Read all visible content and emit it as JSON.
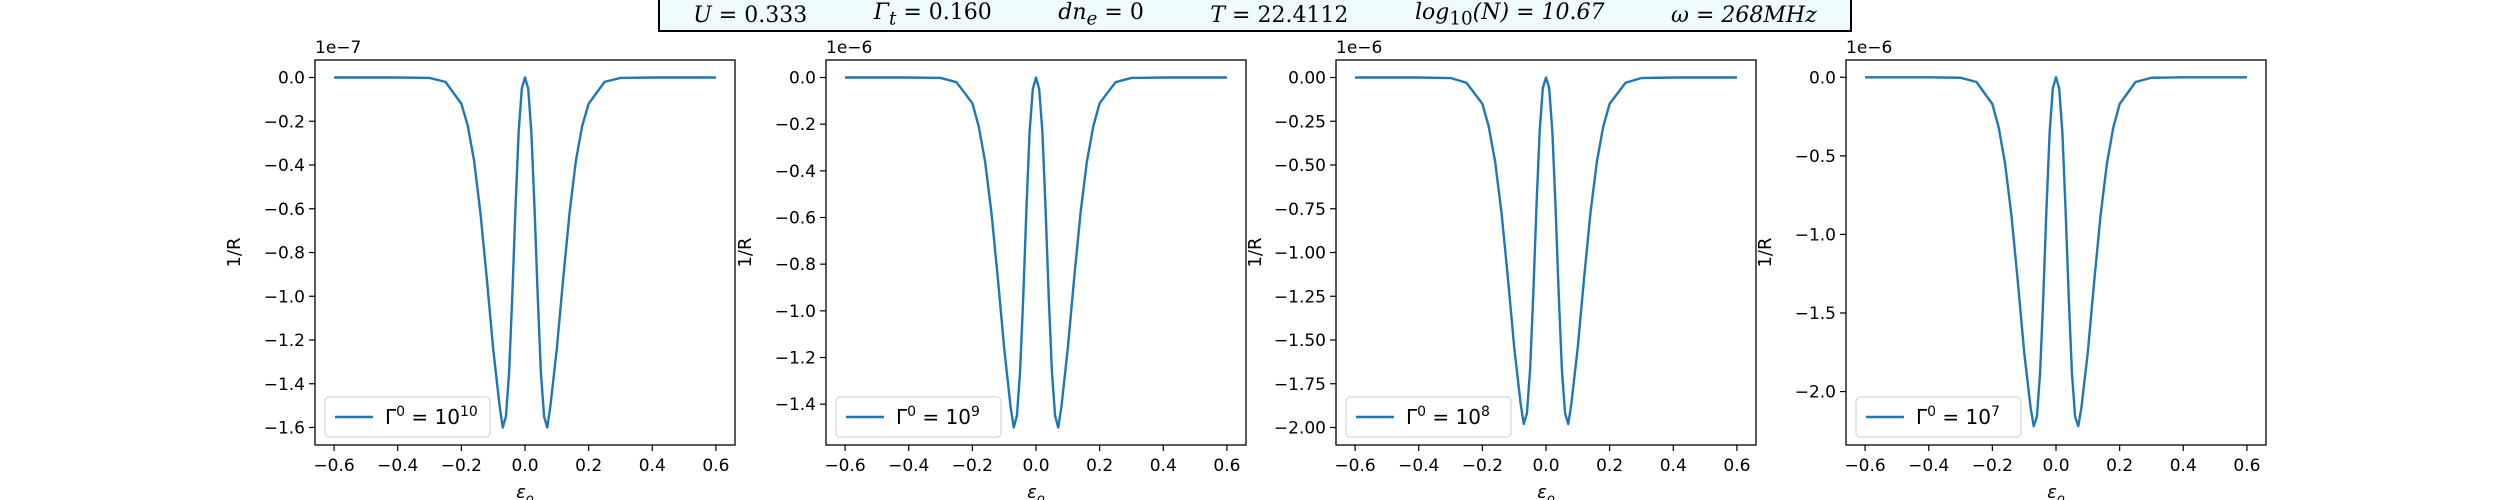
{
  "header": {
    "params": [
      {
        "sym": "U",
        "sub": "",
        "sup": "",
        "pre": "",
        "rest": " = 0.333"
      },
      {
        "sym": "Γ",
        "sub": "t",
        "sup": "",
        "pre": "",
        "rest": " = 0.160"
      },
      {
        "sym": "dn",
        "sub": "e",
        "sup": "",
        "pre": "",
        "rest": " = 0"
      },
      {
        "sym": "T",
        "sub": "",
        "sup": "",
        "pre": "",
        "rest": " = 22.4112"
      },
      {
        "sym": "log",
        "sub": "10",
        "sup": "",
        "pre": "",
        "rest": "(N) = 10.67"
      },
      {
        "sym": "ω",
        "sub": "",
        "sup": "",
        "pre": "",
        "rest": " = 268MHz"
      }
    ]
  },
  "colors": {
    "line": "#1f77b4",
    "axis": "#000000",
    "legend_border": "#cccccc"
  },
  "chart_data": [
    {
      "type": "line",
      "xlabel": "ε_o",
      "ylabel": "1/R",
      "xlim": [
        -0.66,
        0.66
      ],
      "ylim": [
        -1.68e-07,
        8e-09
      ],
      "xticks": [
        -0.6,
        -0.4,
        -0.2,
        0.0,
        0.2,
        0.4,
        0.6
      ],
      "xtick_labels": [
        "−0.6",
        "−0.4",
        "−0.2",
        "0.0",
        "0.2",
        "0.4",
        "0.6"
      ],
      "yticks": [
        0,
        -2e-08,
        -4e-08,
        -6e-08,
        -8e-08,
        -1e-07,
        -1.2e-07,
        -1.4e-07,
        -1.6e-07
      ],
      "ytick_labels": [
        "0.0",
        "−0.2",
        "−0.4",
        "−0.6",
        "−0.8",
        "−1.0",
        "−1.2",
        "−1.4",
        "−1.6"
      ],
      "offset_text": "1e−7",
      "series": [
        {
          "name": "Γ⁰ = 10¹⁰",
          "base": "Γ",
          "sup1": "0",
          "mid": " = 10",
          "sup2": "10",
          "x": [
            -0.6,
            -0.5,
            -0.4,
            -0.3,
            -0.25,
            -0.2,
            -0.18,
            -0.16,
            -0.14,
            -0.12,
            -0.1,
            -0.08,
            -0.07,
            -0.06,
            -0.05,
            -0.04,
            -0.03,
            -0.02,
            -0.01,
            0.0,
            0.01,
            0.02,
            0.03,
            0.04,
            0.05,
            0.06,
            0.07,
            0.08,
            0.1,
            0.12,
            0.14,
            0.16,
            0.18,
            0.2,
            0.25,
            0.3,
            0.4,
            0.5,
            0.6
          ],
          "y": [
            0,
            0,
            0,
            -2e-10,
            -2e-09,
            -1.2e-08,
            -2.2e-08,
            -3.8e-08,
            -6.2e-08,
            -9.2e-08,
            -1.24e-07,
            -1.5e-07,
            -1.6e-07,
            -1.55e-07,
            -1.35e-07,
            -1e-07,
            -6e-08,
            -2.5e-08,
            -5e-09,
            0,
            -5e-09,
            -2.5e-08,
            -6e-08,
            -1e-07,
            -1.35e-07,
            -1.55e-07,
            -1.6e-07,
            -1.5e-07,
            -1.24e-07,
            -9.2e-08,
            -6.2e-08,
            -3.8e-08,
            -2.2e-08,
            -1.2e-08,
            -2e-09,
            -2e-10,
            0,
            0,
            0
          ]
        }
      ]
    },
    {
      "type": "line",
      "xlabel": "ε_o",
      "ylabel": "1/R",
      "xlim": [
        -0.66,
        0.66
      ],
      "ylim": [
        -1.575e-06,
        7.5e-08
      ],
      "xticks": [
        -0.6,
        -0.4,
        -0.2,
        0.0,
        0.2,
        0.4,
        0.6
      ],
      "xtick_labels": [
        "−0.6",
        "−0.4",
        "−0.2",
        "0.0",
        "0.2",
        "0.4",
        "0.6"
      ],
      "yticks": [
        0,
        -2e-07,
        -4e-07,
        -6e-07,
        -8e-07,
        -1e-06,
        -1.2e-06,
        -1.4e-06
      ],
      "ytick_labels": [
        "0.0",
        "−0.2",
        "−0.4",
        "−0.6",
        "−0.8",
        "−1.0",
        "−1.2",
        "−1.4"
      ],
      "offset_text": "1e−6",
      "series": [
        {
          "name": "Γ⁰ = 10⁹",
          "base": "Γ",
          "sup1": "0",
          "mid": " = 10",
          "sup2": "9",
          "x": [
            -0.6,
            -0.5,
            -0.4,
            -0.3,
            -0.25,
            -0.2,
            -0.18,
            -0.16,
            -0.14,
            -0.12,
            -0.1,
            -0.08,
            -0.07,
            -0.06,
            -0.05,
            -0.04,
            -0.03,
            -0.02,
            -0.01,
            0.0,
            0.01,
            0.02,
            0.03,
            0.04,
            0.05,
            0.06,
            0.07,
            0.08,
            0.1,
            0.12,
            0.14,
            0.16,
            0.18,
            0.2,
            0.25,
            0.3,
            0.4,
            0.5,
            0.6
          ],
          "y": [
            0,
            0,
            0,
            -2e-09,
            -2e-08,
            -1.1e-07,
            -2.1e-07,
            -3.6e-07,
            -5.8e-07,
            -8.6e-07,
            -1.16e-06,
            -1.41e-06,
            -1.5e-06,
            -1.45e-06,
            -1.26e-06,
            -9.4e-07,
            -5.6e-07,
            -2.3e-07,
            -5e-08,
            0,
            -5e-08,
            -2.3e-07,
            -5.6e-07,
            -9.4e-07,
            -1.26e-06,
            -1.45e-06,
            -1.5e-06,
            -1.41e-06,
            -1.16e-06,
            -8.6e-07,
            -5.8e-07,
            -3.6e-07,
            -2.1e-07,
            -1.1e-07,
            -2e-08,
            -2e-09,
            0,
            0,
            0
          ]
        }
      ]
    },
    {
      "type": "line",
      "xlabel": "ε_o",
      "ylabel": "1/R",
      "xlim": [
        -0.66,
        0.66
      ],
      "ylim": [
        -2.1e-06,
        1e-07
      ],
      "xticks": [
        -0.6,
        -0.4,
        -0.2,
        0.0,
        0.2,
        0.4,
        0.6
      ],
      "xtick_labels": [
        "−0.6",
        "−0.4",
        "−0.2",
        "0.0",
        "0.2",
        "0.4",
        "0.6"
      ],
      "yticks": [
        0,
        -2.5e-07,
        -5e-07,
        -7.5e-07,
        -1e-06,
        -1.25e-06,
        -1.5e-06,
        -1.75e-06,
        -2e-06
      ],
      "ytick_labels": [
        "0.00",
        "−0.25",
        "−0.50",
        "−0.75",
        "−1.00",
        "−1.25",
        "−1.50",
        "−1.75",
        "−2.00"
      ],
      "offset_text": "1e−6",
      "series": [
        {
          "name": "Γ⁰ = 10⁸",
          "base": "Γ",
          "sup1": "0",
          "mid": " = 10",
          "sup2": "8",
          "x": [
            -0.6,
            -0.5,
            -0.4,
            -0.3,
            -0.25,
            -0.2,
            -0.18,
            -0.16,
            -0.14,
            -0.12,
            -0.1,
            -0.08,
            -0.07,
            -0.06,
            -0.05,
            -0.04,
            -0.03,
            -0.02,
            -0.01,
            0.0,
            0.01,
            0.02,
            0.03,
            0.04,
            0.05,
            0.06,
            0.07,
            0.08,
            0.1,
            0.12,
            0.14,
            0.16,
            0.18,
            0.2,
            0.25,
            0.3,
            0.4,
            0.5,
            0.6
          ],
          "y": [
            0,
            0,
            0,
            -3e-09,
            -3e-08,
            -1.5e-07,
            -2.8e-07,
            -4.8e-07,
            -7.7e-07,
            -1.14e-06,
            -1.54e-06,
            -1.86e-06,
            -1.98e-06,
            -1.92e-06,
            -1.67e-06,
            -1.24e-06,
            -7.4e-07,
            -3.1e-07,
            -6e-08,
            0,
            -6e-08,
            -3.1e-07,
            -7.4e-07,
            -1.24e-06,
            -1.67e-06,
            -1.92e-06,
            -1.98e-06,
            -1.86e-06,
            -1.54e-06,
            -1.14e-06,
            -7.7e-07,
            -4.8e-07,
            -2.8e-07,
            -1.5e-07,
            -3e-08,
            -3e-09,
            0,
            0,
            0
          ]
        }
      ]
    },
    {
      "type": "line",
      "xlabel": "ε_o",
      "ylabel": "1/R",
      "xlim": [
        -0.66,
        0.66
      ],
      "ylim": [
        -2.34e-06,
        1.1e-07
      ],
      "xticks": [
        -0.6,
        -0.4,
        -0.2,
        0.0,
        0.2,
        0.4,
        0.6
      ],
      "xtick_labels": [
        "−0.6",
        "−0.4",
        "−0.2",
        "0.0",
        "0.2",
        "0.4",
        "0.6"
      ],
      "yticks": [
        0,
        -5e-07,
        -1e-06,
        -1.5e-06,
        -2e-06
      ],
      "ytick_labels": [
        "0.0",
        "−0.5",
        "−1.0",
        "−1.5",
        "−2.0"
      ],
      "offset_text": "1e−6",
      "series": [
        {
          "name": "Γ⁰ = 10⁷",
          "base": "Γ",
          "sup1": "0",
          "mid": " = 10",
          "sup2": "7",
          "x": [
            -0.6,
            -0.5,
            -0.4,
            -0.3,
            -0.25,
            -0.2,
            -0.18,
            -0.16,
            -0.14,
            -0.12,
            -0.1,
            -0.08,
            -0.07,
            -0.06,
            -0.05,
            -0.04,
            -0.03,
            -0.02,
            -0.01,
            0.0,
            0.01,
            0.02,
            0.03,
            0.04,
            0.05,
            0.06,
            0.07,
            0.08,
            0.1,
            0.12,
            0.14,
            0.16,
            0.18,
            0.2,
            0.25,
            0.3,
            0.4,
            0.5,
            0.6
          ],
          "y": [
            0,
            0,
            0,
            -3e-09,
            -3e-08,
            -1.7e-07,
            -3.2e-07,
            -5.5e-07,
            -8.8e-07,
            -1.3e-06,
            -1.75e-06,
            -2.1e-06,
            -2.22e-06,
            -2.16e-06,
            -1.88e-06,
            -1.4e-06,
            -8.4e-07,
            -3.5e-07,
            -7e-08,
            0,
            -7e-08,
            -3.5e-07,
            -8.4e-07,
            -1.4e-06,
            -1.88e-06,
            -2.16e-06,
            -2.22e-06,
            -2.1e-06,
            -1.75e-06,
            -1.3e-06,
            -8.8e-07,
            -5.5e-07,
            -3.2e-07,
            -1.7e-07,
            -3e-08,
            -3e-09,
            0,
            0,
            0
          ]
        }
      ]
    }
  ]
}
